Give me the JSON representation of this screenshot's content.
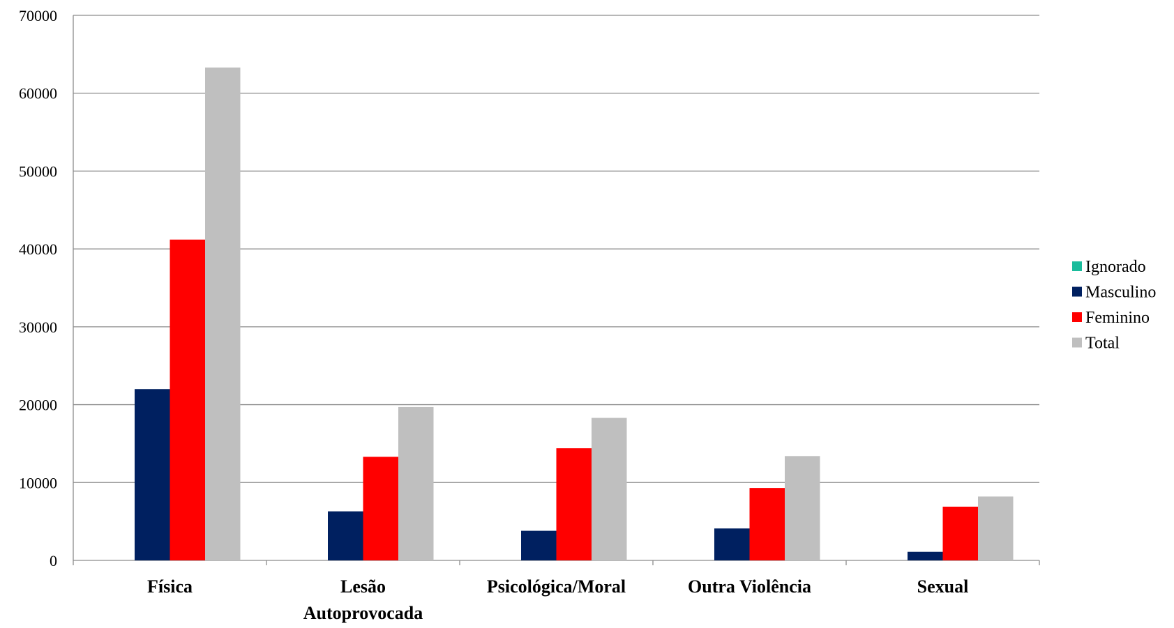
{
  "chart_data": {
    "type": "bar",
    "categories": [
      "Física",
      "Lesão Autoprovocada",
      "Psicológica/Moral",
      "Outra Violência",
      "Sexual"
    ],
    "category_lines": [
      [
        "Física"
      ],
      [
        "Lesão",
        "Autoprovocada"
      ],
      [
        "Psicológica/Moral"
      ],
      [
        "Outra Violência"
      ],
      [
        "Sexual"
      ]
    ],
    "series": [
      {
        "name": "Ignorado",
        "color": "#1ABC9C",
        "values": [
          0,
          0,
          0,
          0,
          0
        ]
      },
      {
        "name": "Masculino",
        "color": "#002060",
        "values": [
          22000,
          6300,
          3800,
          4100,
          1100
        ]
      },
      {
        "name": "Feminino",
        "color": "#FF0000",
        "values": [
          41200,
          13300,
          14400,
          9300,
          6900
        ]
      },
      {
        "name": "Total",
        "color": "#BFBFBF",
        "values": [
          63300,
          19700,
          18300,
          13400,
          8200
        ]
      }
    ],
    "ylim": [
      0,
      70000
    ],
    "yticks": [
      "0",
      "10000",
      "20000",
      "30000",
      "40000",
      "50000",
      "60000",
      "70000"
    ],
    "grid": true,
    "legend_position": "right",
    "title": "",
    "xlabel": "",
    "ylabel": ""
  }
}
